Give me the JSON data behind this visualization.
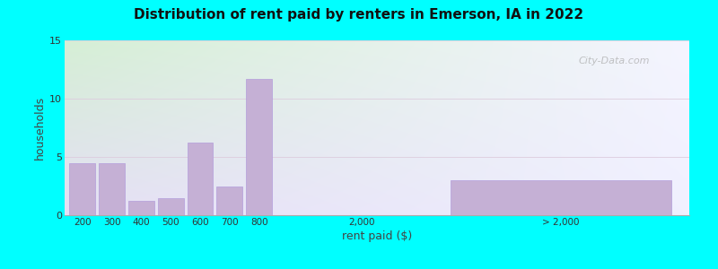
{
  "title": "Distribution of rent paid by renters in Emerson, IA in 2022",
  "xlabel": "rent paid ($)",
  "ylabel": "households",
  "background_color": "#00FFFF",
  "grad_top_left": "#daf0da",
  "grad_top_right": "#f5f5ff",
  "grad_bottom_left": "#e8e8f8",
  "grad_bottom_right": "#e0e8f8",
  "bar_color": "#c5b0d5",
  "bar_edge_color": "#b39ddb",
  "ylim": [
    0,
    15
  ],
  "yticks": [
    0,
    5,
    10,
    15
  ],
  "bars": [
    {
      "label": "200",
      "value": 4.5
    },
    {
      "label": "300",
      "value": 4.5
    },
    {
      "label": "400",
      "value": 1.2
    },
    {
      "label": "500",
      "value": 1.5
    },
    {
      "label": "600",
      "value": 6.2
    },
    {
      "label": "700",
      "value": 2.5
    },
    {
      "label": "800",
      "value": 11.7
    }
  ],
  "special_bar": {
    "label": "> 2,000",
    "value": 3.0
  },
  "mid_label": "2,000",
  "watermark": "City-Data.com"
}
